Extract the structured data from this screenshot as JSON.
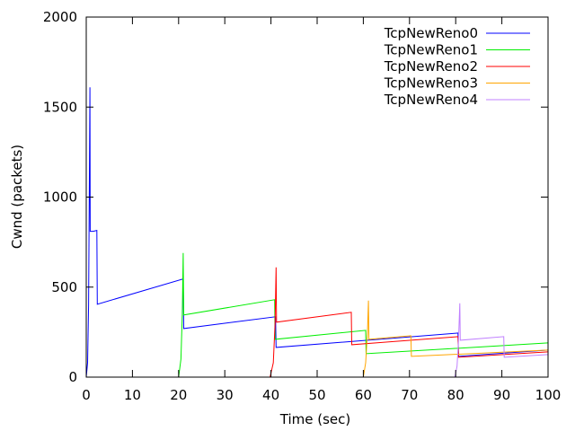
{
  "chart_data": {
    "type": "line",
    "xlabel": "Time (sec)",
    "ylabel": "Cwnd (packets)",
    "xlim": [
      0,
      100
    ],
    "ylim": [
      0,
      2000
    ],
    "xticks": [
      "0",
      "10",
      "20",
      "30",
      "40",
      "50",
      "60",
      "70",
      "80",
      "90",
      "100"
    ],
    "yticks": [
      "0",
      "500",
      "1000",
      "1500",
      "2000"
    ],
    "grid": false,
    "legend_position": "top-right",
    "series": [
      {
        "name": "TcpNewReno0",
        "color": "#0000ff",
        "points": [
          [
            0,
            0
          ],
          [
            0.3,
            80
          ],
          [
            0.5,
            400
          ],
          [
            0.7,
            1200
          ],
          [
            0.8,
            1610
          ],
          [
            0.85,
            810
          ],
          [
            1.5,
            810
          ],
          [
            2.3,
            815
          ],
          [
            2.4,
            405
          ],
          [
            21.0,
            545
          ],
          [
            21.1,
            270
          ],
          [
            41.0,
            335
          ],
          [
            41.1,
            165
          ],
          [
            80.5,
            245
          ],
          [
            80.6,
            115
          ],
          [
            100,
            150
          ]
        ]
      },
      {
        "name": "TcpNewReno1",
        "color": "#00ee00",
        "points": [
          [
            20.0,
            0
          ],
          [
            20.5,
            100
          ],
          [
            20.8,
            350
          ],
          [
            21.0,
            690
          ],
          [
            21.1,
            345
          ],
          [
            40.8,
            430
          ],
          [
            40.9,
            210
          ],
          [
            60.5,
            260
          ],
          [
            60.6,
            130
          ],
          [
            100,
            190
          ]
        ]
      },
      {
        "name": "TcpNewReno2",
        "color": "#ff0000",
        "points": [
          [
            39.8,
            0
          ],
          [
            40.5,
            80
          ],
          [
            40.9,
            300
          ],
          [
            41.1,
            610
          ],
          [
            41.2,
            305
          ],
          [
            57.4,
            360
          ],
          [
            57.5,
            180
          ],
          [
            80.5,
            225
          ],
          [
            80.6,
            110
          ],
          [
            100,
            140
          ]
        ]
      },
      {
        "name": "TcpNewReno3",
        "color": "#ffa500",
        "points": [
          [
            60.0,
            0
          ],
          [
            60.5,
            80
          ],
          [
            60.9,
            250
          ],
          [
            61.1,
            425
          ],
          [
            61.2,
            210
          ],
          [
            70.3,
            230
          ],
          [
            70.4,
            115
          ],
          [
            100,
            150
          ]
        ]
      },
      {
        "name": "TcpNewReno4",
        "color": "#c080ff",
        "points": [
          [
            79.8,
            0
          ],
          [
            80.3,
            60
          ],
          [
            80.6,
            200
          ],
          [
            80.9,
            410
          ],
          [
            81.0,
            205
          ],
          [
            90.4,
            225
          ],
          [
            90.5,
            110
          ],
          [
            100,
            125
          ]
        ]
      }
    ]
  }
}
